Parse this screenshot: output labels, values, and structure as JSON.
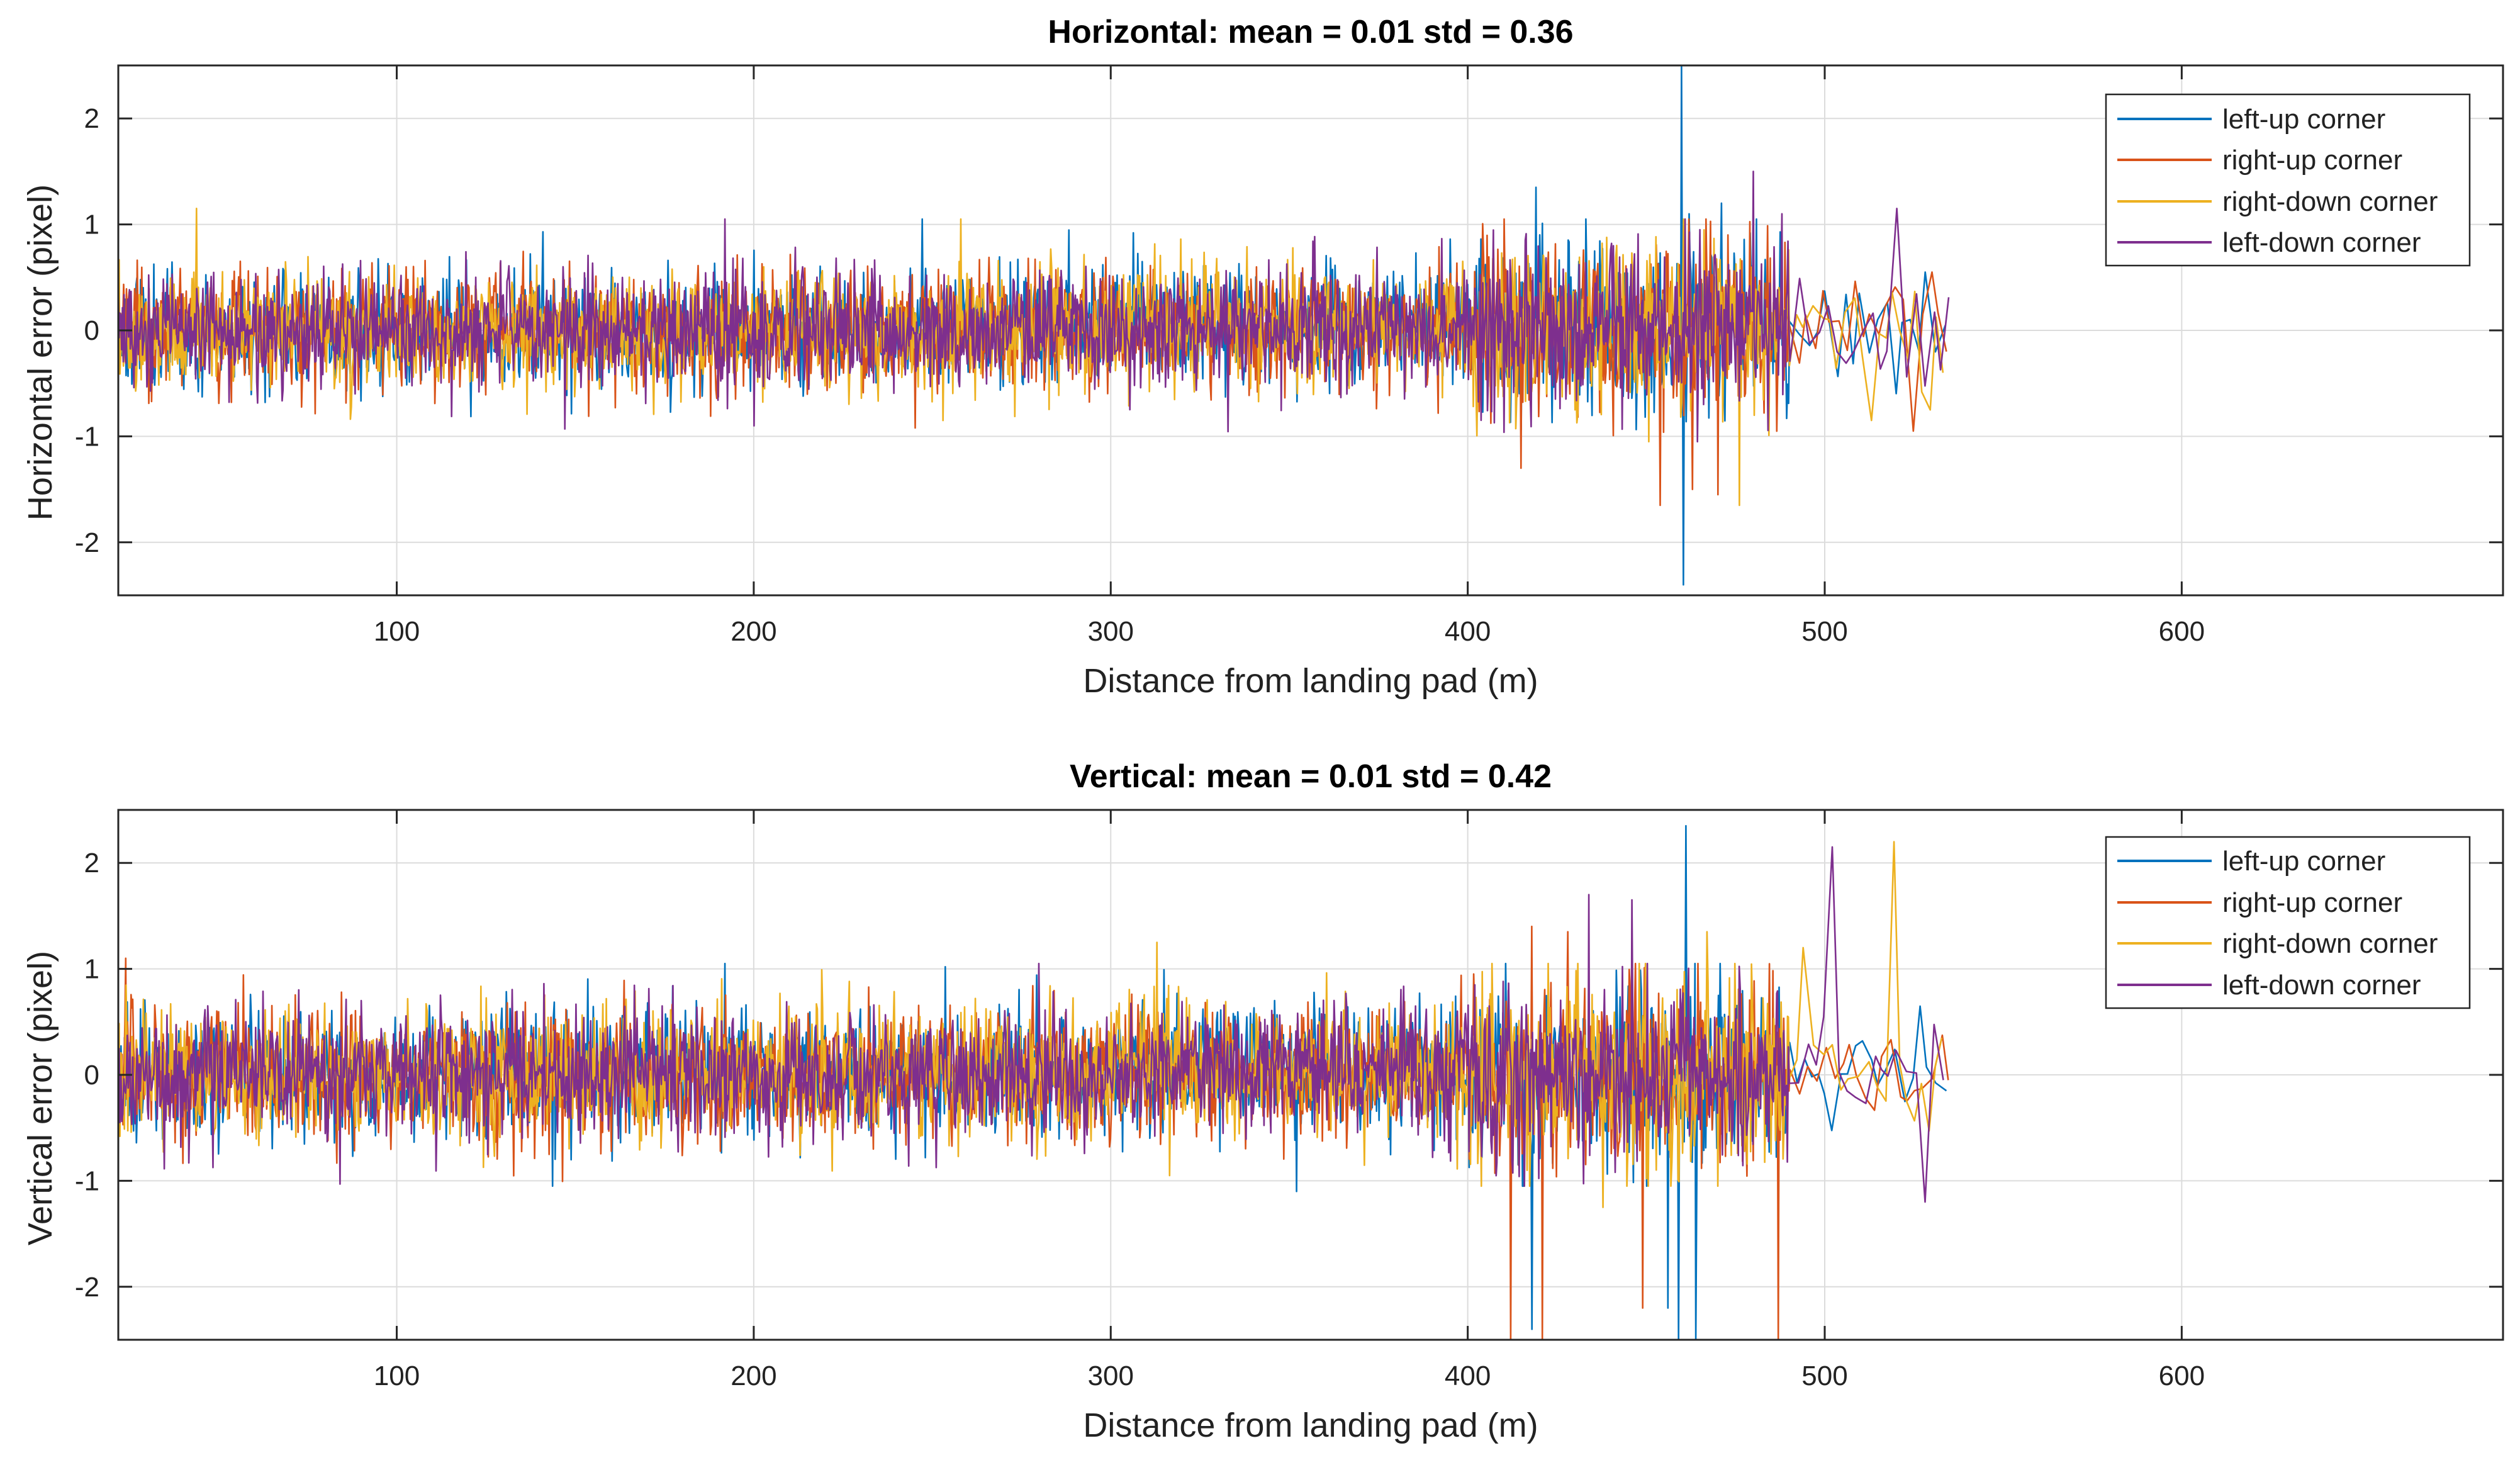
{
  "colors": {
    "left_up": "#0072BD",
    "right_up": "#D95319",
    "right_down": "#EDB120",
    "left_down": "#7E2F8E",
    "grid": "#dcdcdc",
    "axis": "#262626"
  },
  "chart_data": [
    {
      "type": "line",
      "title": "Horizontal: mean = 0.01  std = 0.36",
      "xlabel": "Distance from landing pad (m)",
      "ylabel": "Horizontal error (pixel)",
      "xlim": [
        22,
        690
      ],
      "ylim": [
        -2.5,
        2.5
      ],
      "xticks": [
        100,
        200,
        300,
        400,
        500,
        600
      ],
      "yticks": [
        2,
        1,
        0,
        -1,
        -2
      ],
      "xtick_labels": [
        "100",
        "200",
        "300",
        "400",
        "500",
        "600"
      ],
      "ytick_labels": [
        "2",
        "1",
        "0",
        "-1",
        "-2"
      ],
      "grid": true,
      "legend_position": "top-right",
      "legend": [
        "left-up corner",
        "right-up corner",
        "right-down corner",
        "left-down corner"
      ],
      "x_range": [
        22,
        535
      ],
      "series": [
        {
          "name": "left-up corner",
          "color_key": "left_up",
          "std": 0.27,
          "seed": 11,
          "spikes": [
            [
              141,
              0.93
            ],
            [
              419,
              1.35
            ],
            [
              460,
              2.5
            ],
            [
              460.5,
              -2.4
            ],
            [
              462,
              1.1
            ],
            [
              471,
              1.2
            ],
            [
              430,
              -0.6
            ],
            [
              535,
              0.05
            ]
          ]
        },
        {
          "name": "right-up corner",
          "color_key": "right_up",
          "std": 0.27,
          "seed": 23,
          "spikes": [
            [
              415,
              -1.3
            ],
            [
              454,
              -1.65
            ],
            [
              463,
              -1.5
            ],
            [
              470,
              -1.55
            ],
            [
              473,
              0.9
            ],
            [
              525,
              -0.95
            ],
            [
              530,
              0.55
            ],
            [
              535,
              -0.2
            ]
          ]
        },
        {
          "name": "right-down corner",
          "color_key": "right_down",
          "std": 0.27,
          "seed": 37,
          "spikes": [
            [
              44,
              1.15
            ],
            [
              258,
              1.05
            ],
            [
              253,
              -0.85
            ],
            [
              476,
              -1.65
            ],
            [
              512,
              -0.85
            ],
            [
              529,
              -0.75
            ],
            [
              535,
              -0.4
            ]
          ]
        },
        {
          "name": "left-down corner",
          "color_key": "left_down",
          "std": 0.27,
          "seed": 53,
          "spikes": [
            [
              147,
              -0.93
            ],
            [
              192,
              1.05
            ],
            [
              465,
              0.95
            ],
            [
              480,
              1.5
            ],
            [
              488,
              1.1
            ],
            [
              521,
              1.15
            ],
            [
              200,
              -0.9
            ]
          ]
        }
      ]
    },
    {
      "type": "line",
      "title": "Vertical: mean = 0.01  std = 0.42",
      "xlabel": "Distance from landing pad (m)",
      "ylabel": "Vertical error (pixel)",
      "xlim": [
        22,
        690
      ],
      "ylim": [
        -2.5,
        2.5
      ],
      "xticks": [
        100,
        200,
        300,
        400,
        500,
        600
      ],
      "yticks": [
        2,
        1,
        0,
        -1,
        -2
      ],
      "xtick_labels": [
        "100",
        "200",
        "300",
        "400",
        "500",
        "600"
      ],
      "ytick_labels": [
        "2",
        "1",
        "0",
        "-1",
        "-2"
      ],
      "grid": true,
      "legend_position": "top-right",
      "legend": [
        "left-up corner",
        "right-up corner",
        "right-down corner",
        "left-down corner"
      ],
      "x_range": [
        22,
        535
      ],
      "series": [
        {
          "name": "left-up corner",
          "color_key": "left_up",
          "std": 0.3,
          "seed": 71,
          "spikes": [
            [
              192,
              1.05
            ],
            [
              352,
              -1.1
            ],
            [
              418,
              -2.4
            ],
            [
              461,
              2.35
            ],
            [
              459,
              -2.5
            ],
            [
              464,
              -2.5
            ],
            [
              456,
              -2.2
            ],
            [
              535,
              -0.15
            ]
          ]
        },
        {
          "name": "right-up corner",
          "color_key": "right_up",
          "std": 0.3,
          "seed": 83,
          "spikes": [
            [
              24,
              1.1
            ],
            [
              412,
              -2.5
            ],
            [
              418,
              1.4
            ],
            [
              421,
              -2.5
            ],
            [
              428,
              1.35
            ],
            [
              449,
              -2.2
            ],
            [
              487,
              -2.5
            ],
            [
              535,
              -0.05
            ]
          ]
        },
        {
          "name": "right-down corner",
          "color_key": "right_down",
          "std": 0.3,
          "seed": 97,
          "spikes": [
            [
              313,
              1.25
            ],
            [
              438,
              -1.25
            ],
            [
              467,
              1.35
            ],
            [
              519,
              2.2
            ],
            [
              495,
              1.2
            ],
            [
              535,
              0.35
            ]
          ]
        },
        {
          "name": "left-down corner",
          "color_key": "left_down",
          "std": 0.3,
          "seed": 109,
          "spikes": [
            [
              84,
              -1.03
            ],
            [
              434,
              1.7
            ],
            [
              446,
              1.65
            ],
            [
              503,
              2.15
            ],
            [
              528,
              -1.2
            ],
            [
              534,
              -0.05
            ]
          ]
        }
      ]
    }
  ]
}
